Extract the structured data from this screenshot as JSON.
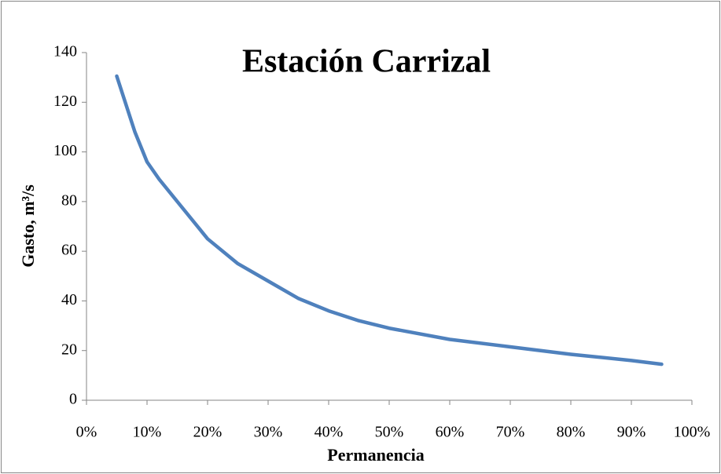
{
  "chart_data": {
    "type": "line",
    "title": "Estación Carrizal",
    "xlabel": "Permanencia",
    "ylabel": "Gasto, m³/s",
    "series": [
      {
        "name": "Estación Carrizal",
        "color": "#4f81bd",
        "x": [
          5,
          8,
          10,
          12,
          15,
          20,
          25,
          30,
          35,
          40,
          45,
          50,
          60,
          70,
          80,
          90,
          95
        ],
        "values": [
          130.5,
          108,
          96,
          89,
          80,
          65,
          55,
          48,
          41,
          36,
          32,
          29,
          24.5,
          21.5,
          18.5,
          16,
          14.5
        ]
      }
    ],
    "xlim": [
      0,
      100
    ],
    "xticks": [
      {
        "value": 0,
        "label": "0%"
      },
      {
        "value": 10,
        "label": "10%"
      },
      {
        "value": 20,
        "label": "20%"
      },
      {
        "value": 30,
        "label": "30%"
      },
      {
        "value": 40,
        "label": "40%"
      },
      {
        "value": 50,
        "label": "50%"
      },
      {
        "value": 60,
        "label": "60%"
      },
      {
        "value": 70,
        "label": "70%"
      },
      {
        "value": 80,
        "label": "80%"
      },
      {
        "value": 90,
        "label": "90%"
      },
      {
        "value": 100,
        "label": "100%"
      }
    ],
    "ylim": [
      0,
      140
    ],
    "yticks": [
      0,
      20,
      40,
      60,
      80,
      100,
      120,
      140
    ],
    "grid": false
  }
}
